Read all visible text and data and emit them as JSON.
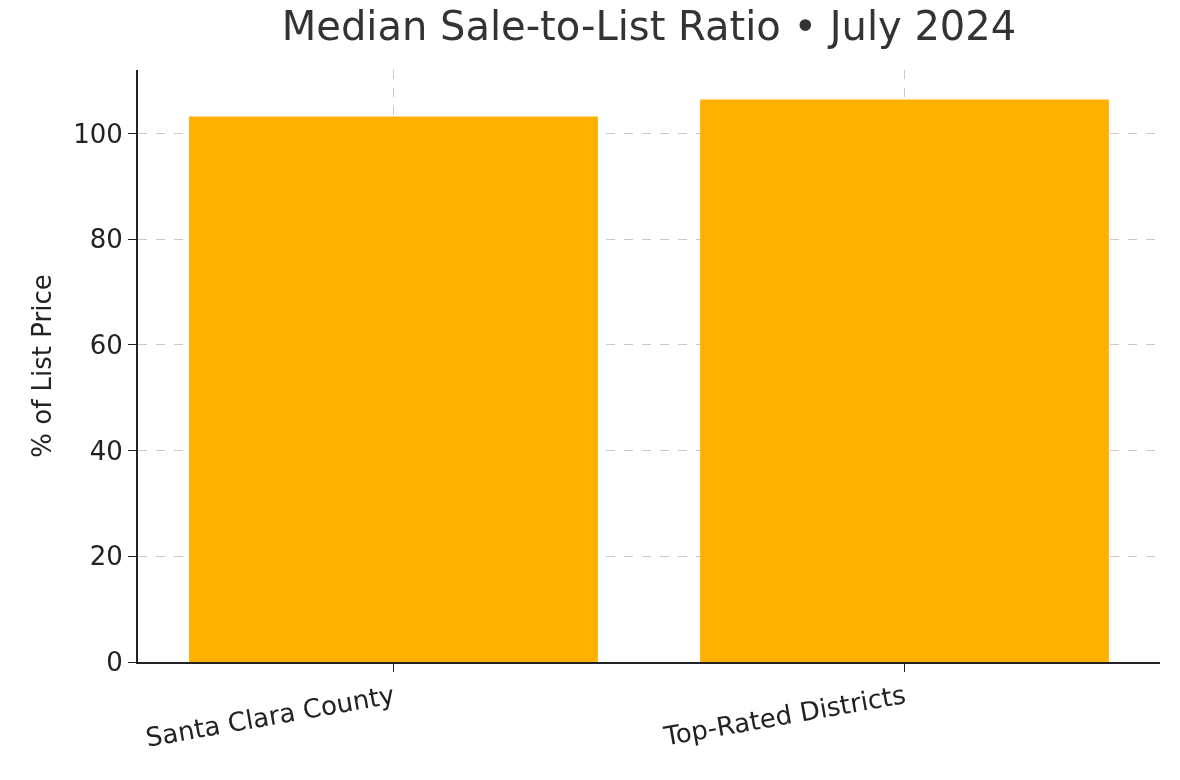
{
  "chart_data": {
    "type": "bar",
    "title": "Median Sale-to-List Ratio • July 2024",
    "ylabel": "% of List Price",
    "categories": [
      "Santa Clara County",
      "Top-Rated Districts"
    ],
    "values": [
      103.2,
      106.4
    ],
    "color": "#ffb000",
    "ylim": [
      0,
      112
    ],
    "yticks": [
      0,
      20,
      40,
      60,
      80,
      100
    ],
    "grid": true
  }
}
